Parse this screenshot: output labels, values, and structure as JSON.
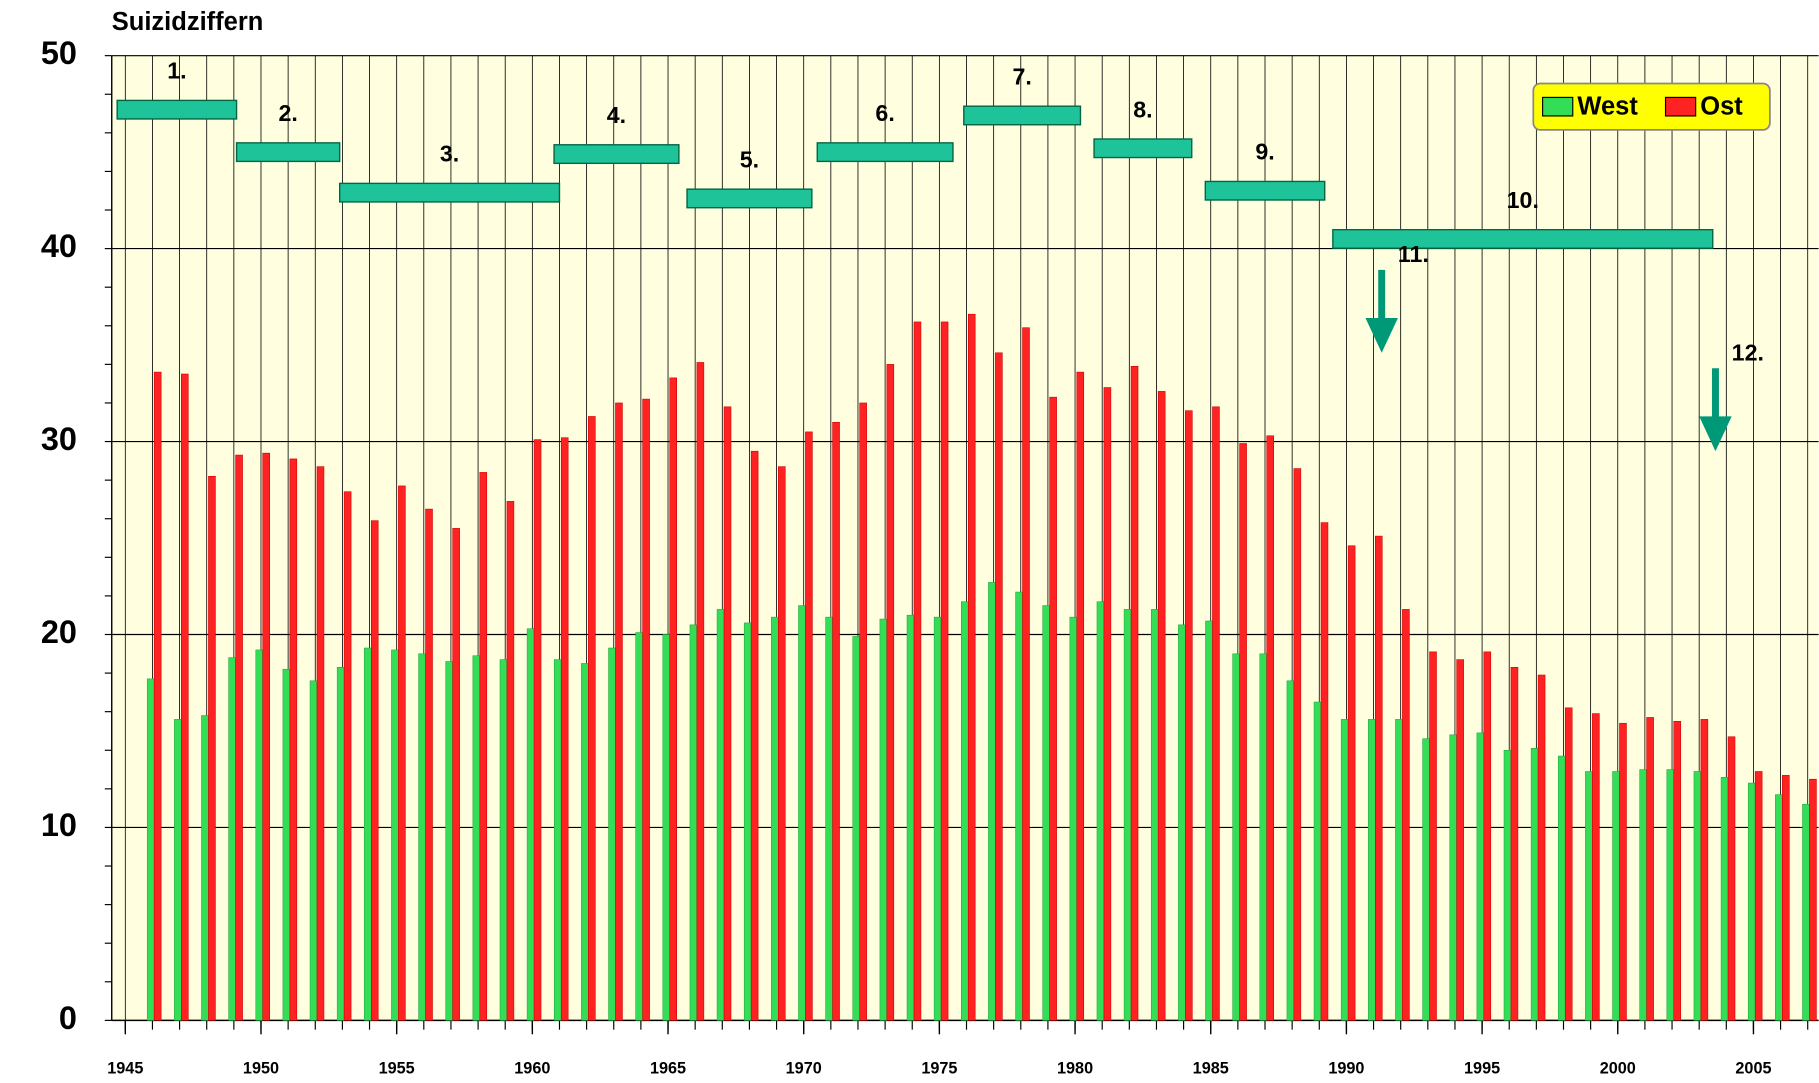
{
  "chart_data": {
    "type": "bar",
    "title": "Suizidziffern",
    "x": [
      1946,
      1947,
      1948,
      1949,
      1950,
      1951,
      1952,
      1953,
      1954,
      1955,
      1956,
      1957,
      1958,
      1959,
      1960,
      1961,
      1962,
      1963,
      1964,
      1965,
      1966,
      1967,
      1968,
      1969,
      1970,
      1971,
      1972,
      1973,
      1974,
      1975,
      1976,
      1977,
      1978,
      1979,
      1980,
      1981,
      1982,
      1983,
      1984,
      1985,
      1986,
      1987,
      1988,
      1989,
      1990,
      1991,
      1992,
      1993,
      1994,
      1995,
      1996,
      1997,
      1998,
      1999,
      2000,
      2001,
      2002,
      2003,
      2004,
      2005,
      2006,
      2007
    ],
    "series": [
      {
        "name": "West",
        "color": "#33dd55",
        "values": [
          17.7,
          15.6,
          15.8,
          18.8,
          19.2,
          18.2,
          17.6,
          18.3,
          19.3,
          19.2,
          19.0,
          18.6,
          18.9,
          18.7,
          20.3,
          18.7,
          18.5,
          19.3,
          20.1,
          20.0,
          20.5,
          21.3,
          20.6,
          20.9,
          21.5,
          20.9,
          19.9,
          20.8,
          21.0,
          20.9,
          21.7,
          22.7,
          22.2,
          21.5,
          20.9,
          21.7,
          21.3,
          21.3,
          20.5,
          20.7,
          19.0,
          19.0,
          17.6,
          16.5,
          15.6,
          15.6,
          15.6,
          14.6,
          14.8,
          14.9,
          14.0,
          14.1,
          13.7,
          12.9,
          12.9,
          13.0,
          13.0,
          12.9,
          12.6,
          12.3,
          11.7,
          11.2
        ]
      },
      {
        "name": "Ost",
        "color": "#ff2222",
        "values": [
          33.6,
          33.5,
          28.2,
          29.3,
          29.4,
          29.1,
          28.7,
          27.4,
          25.9,
          27.7,
          26.5,
          25.5,
          28.4,
          26.9,
          30.1,
          30.2,
          31.3,
          32.0,
          32.2,
          33.3,
          34.1,
          31.8,
          29.5,
          28.7,
          30.5,
          31.0,
          32.0,
          34.0,
          36.2,
          36.2,
          36.6,
          34.6,
          35.9,
          32.3,
          33.6,
          32.8,
          33.9,
          32.6,
          31.6,
          31.8,
          29.9,
          30.3,
          28.6,
          25.8,
          24.6,
          25.1,
          21.3,
          19.1,
          18.7,
          19.1,
          18.3,
          17.9,
          16.2,
          15.9,
          15.4,
          15.7,
          15.5,
          15.6,
          14.7,
          12.9,
          12.7,
          12.5
        ]
      }
    ],
    "xlim": [
      1944.5,
      2007.4
    ],
    "xticks": [
      1945,
      1950,
      1955,
      1960,
      1965,
      1970,
      1975,
      1980,
      1985,
      1990,
      1995,
      2000,
      2005
    ],
    "ylim": [
      0,
      50
    ],
    "yticks": [
      0,
      10,
      20,
      30,
      40,
      50
    ],
    "grid": true,
    "legend": "upper right",
    "period_labels": [
      "1.",
      "2.",
      "3.",
      "4.",
      "5.",
      "6.",
      "7.",
      "8.",
      "9.",
      "10."
    ],
    "arrow_labels": [
      "11.",
      "12."
    ]
  }
}
